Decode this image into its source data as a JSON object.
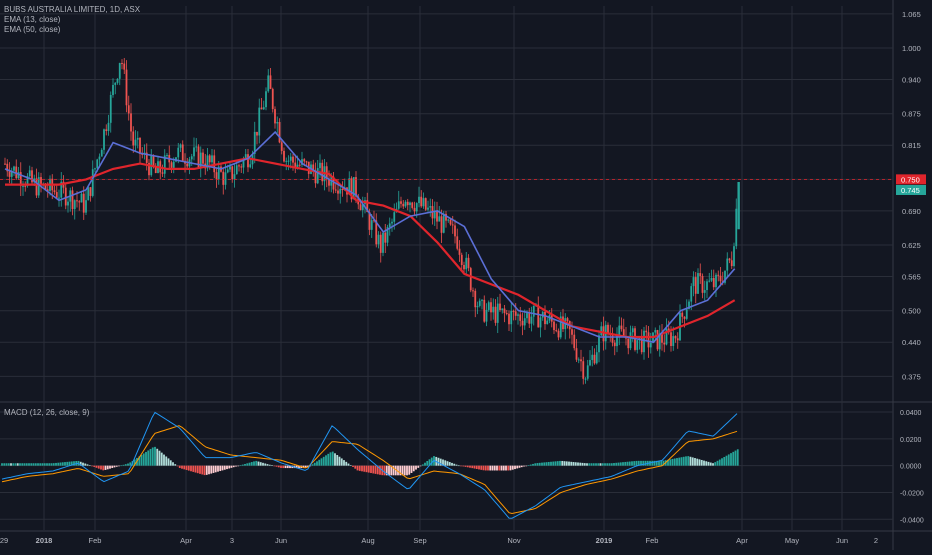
{
  "header": {
    "symbol_title": "BUBS AUSTRALIA LIMITED, 1D, ASX",
    "ema13_label": "EMA (13, close)",
    "ema50_label": "EMA (50, close)",
    "macd_label": "MACD (12, 26, close, 9)"
  },
  "colors": {
    "background": "#131722",
    "grid": "#2a2e39",
    "up": "#26a69a",
    "down": "#ef5350",
    "ema13": "#5b6fd6",
    "ema50": "#e0252c",
    "macd_line": "#2196f3",
    "signal_line": "#ff9800",
    "axis_text": "#b2b5be"
  },
  "price_badges": {
    "ema50_value": "0.750",
    "last_close": "0.745"
  },
  "chart_data": [
    {
      "type": "candlestick",
      "title": "BUBS AUSTRALIA LIMITED, 1D, ASX",
      "price_axis_ticks": [
        "1.065",
        "1.000",
        "0.940",
        "0.875",
        "0.815",
        "0.750",
        "0.690",
        "0.625",
        "0.565",
        "0.500",
        "0.440",
        "0.375"
      ],
      "time_axis_labels": [
        "29",
        "2018",
        "Feb",
        "Apr",
        "3",
        "Jun",
        "Aug",
        "Sep",
        "Nov",
        "2019",
        "Feb",
        "Apr",
        "May",
        "Jun",
        "2"
      ],
      "ylim": [
        0.33,
        1.08
      ],
      "grid": true,
      "price_series_approx": [
        {
          "date": "2017-12-29",
          "close": 0.78
        },
        {
          "date": "2018-01-15",
          "close": 0.74
        },
        {
          "date": "2018-02-05",
          "close": 0.72
        },
        {
          "date": "2018-02-15",
          "close": 0.7
        },
        {
          "date": "2018-02-26",
          "close": 0.84
        },
        {
          "date": "2018-03-08",
          "close": 0.99
        },
        {
          "date": "2018-03-15",
          "close": 0.82
        },
        {
          "date": "2018-03-29",
          "close": 0.76
        },
        {
          "date": "2018-04-10",
          "close": 0.8
        },
        {
          "date": "2018-04-26",
          "close": 0.79
        },
        {
          "date": "2018-05-10",
          "close": 0.75
        },
        {
          "date": "2018-05-24",
          "close": 0.8
        },
        {
          "date": "2018-06-04",
          "close": 0.93
        },
        {
          "date": "2018-06-14",
          "close": 0.79
        },
        {
          "date": "2018-07-05",
          "close": 0.76
        },
        {
          "date": "2018-07-26",
          "close": 0.73
        },
        {
          "date": "2018-08-10",
          "close": 0.62
        },
        {
          "date": "2018-08-24",
          "close": 0.72
        },
        {
          "date": "2018-09-07",
          "close": 0.69
        },
        {
          "date": "2018-09-24",
          "close": 0.64
        },
        {
          "date": "2018-10-08",
          "close": 0.5
        },
        {
          "date": "2018-10-26",
          "close": 0.49
        },
        {
          "date": "2018-11-12",
          "close": 0.49
        },
        {
          "date": "2018-11-30",
          "close": 0.46
        },
        {
          "date": "2018-12-10",
          "close": 0.38
        },
        {
          "date": "2018-12-20",
          "close": 0.46
        },
        {
          "date": "2019-01-14",
          "close": 0.44
        },
        {
          "date": "2019-02-01",
          "close": 0.45
        },
        {
          "date": "2019-02-12",
          "close": 0.55
        },
        {
          "date": "2019-02-26",
          "close": 0.55
        },
        {
          "date": "2019-03-07",
          "close": 0.6
        },
        {
          "date": "2019-03-11",
          "close": 0.745
        }
      ],
      "ema13_approx": [
        0.77,
        0.75,
        0.71,
        0.73,
        0.82,
        0.8,
        0.79,
        0.78,
        0.77,
        0.79,
        0.84,
        0.78,
        0.75,
        0.72,
        0.65,
        0.68,
        0.69,
        0.66,
        0.56,
        0.5,
        0.49,
        0.47,
        0.45,
        0.45,
        0.44,
        0.5,
        0.52,
        0.58
      ],
      "ema50_approx": [
        0.74,
        0.74,
        0.74,
        0.75,
        0.77,
        0.78,
        0.77,
        0.77,
        0.78,
        0.79,
        0.78,
        0.77,
        0.76,
        0.71,
        0.7,
        0.68,
        0.63,
        0.57,
        0.55,
        0.53,
        0.5,
        0.47,
        0.46,
        0.45,
        0.45,
        0.47,
        0.49,
        0.52
      ]
    },
    {
      "type": "macd",
      "title": "MACD (12, 26, close, 9)",
      "axis_ticks": [
        "0.0400",
        "0.0200",
        "0.0000",
        "-0.0200",
        "-0.0400"
      ],
      "ylim": [
        -0.048,
        0.046
      ],
      "macd_approx": [
        -0.01,
        -0.006,
        -0.004,
        0.002,
        -0.012,
        -0.004,
        0.04,
        0.028,
        0.006,
        0.006,
        0.01,
        0.002,
        -0.004,
        0.03,
        0.012,
        -0.004,
        -0.018,
        0.004,
        -0.006,
        -0.018,
        -0.04,
        -0.03,
        -0.016,
        -0.012,
        -0.008,
        0.0,
        0.004,
        0.026,
        0.022,
        0.04
      ],
      "signal_approx": [
        -0.012,
        -0.008,
        -0.006,
        -0.002,
        -0.008,
        -0.006,
        0.024,
        0.03,
        0.014,
        0.008,
        0.006,
        0.004,
        -0.002,
        0.018,
        0.016,
        0.004,
        -0.01,
        -0.004,
        -0.006,
        -0.014,
        -0.036,
        -0.032,
        -0.02,
        -0.014,
        -0.01,
        -0.004,
        0.0,
        0.018,
        0.02,
        0.026
      ]
    }
  ]
}
